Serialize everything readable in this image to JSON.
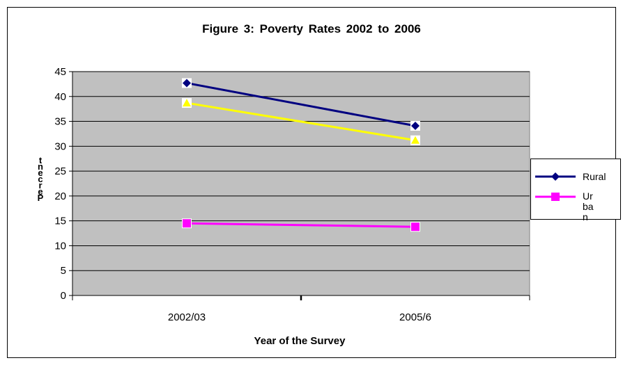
{
  "chart_data": {
    "type": "line",
    "title": "Figure 3:    Poverty Rates 2002 to 2006",
    "xlabel": "Year of the Survey",
    "ylabel": "Percent",
    "categories": [
      "2002/03",
      "2005/6"
    ],
    "ylim": [
      0,
      45
    ],
    "yticks": [
      0,
      5,
      10,
      15,
      20,
      25,
      30,
      35,
      40,
      45
    ],
    "grid": true,
    "legend": "right",
    "plot_background": "#c0c0c0",
    "series": [
      {
        "name": "Rural",
        "values": [
          42.7,
          34.1
        ],
        "color": "#000080",
        "marker": "diamond"
      },
      {
        "name": "",
        "values": [
          38.7,
          31.2
        ],
        "color": "#ffff00",
        "marker": "triangle"
      },
      {
        "name": "Urban",
        "values": [
          14.5,
          13.8
        ],
        "color": "#ff00ff",
        "marker": "square"
      }
    ]
  }
}
